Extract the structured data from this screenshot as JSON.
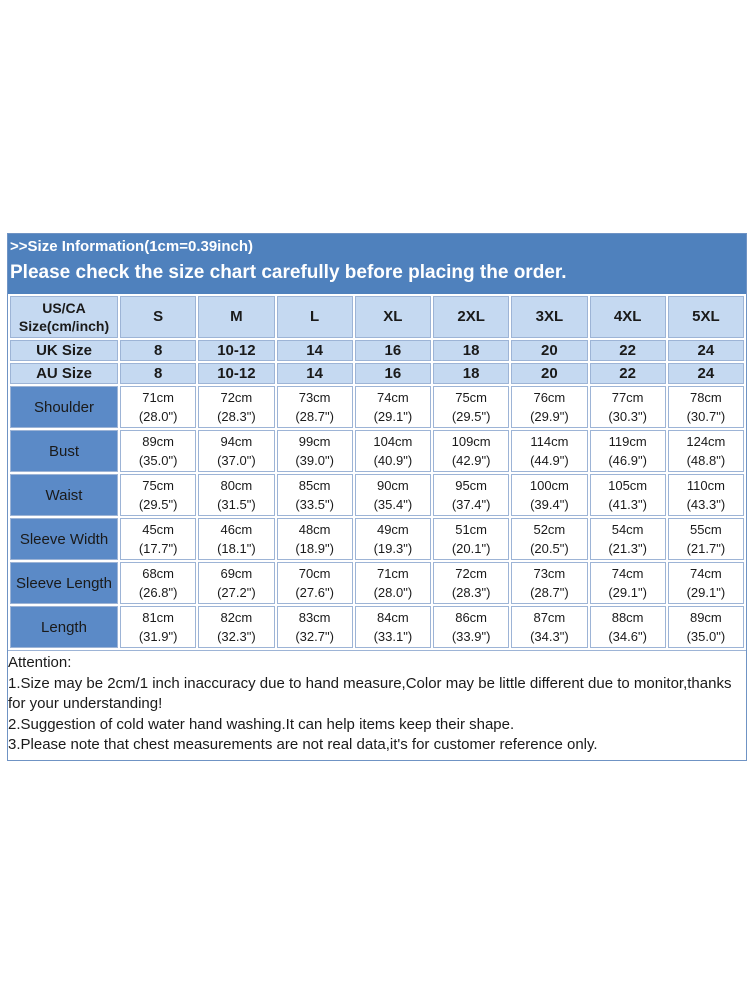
{
  "header": {
    "subtitle": ">>Size Information(1cm=0.39inch)",
    "title": "Please check the size chart carefully before placing the order."
  },
  "table": {
    "corner_label_line1": "US/CA",
    "corner_label_line2": "Size(cm/inch)",
    "sizes": [
      "S",
      "M",
      "L",
      "XL",
      "2XL",
      "3XL",
      "4XL",
      "5XL"
    ],
    "uk": {
      "label": "UK Size",
      "values": [
        "8",
        "10-12",
        "14",
        "16",
        "18",
        "20",
        "22",
        "24"
      ]
    },
    "au": {
      "label": "AU Size",
      "values": [
        "8",
        "10-12",
        "14",
        "16",
        "18",
        "20",
        "22",
        "24"
      ]
    },
    "measurements": [
      {
        "label": "Shoulder",
        "cm": [
          "71cm",
          "72cm",
          "73cm",
          "74cm",
          "75cm",
          "76cm",
          "77cm",
          "78cm"
        ],
        "inch": [
          "(28.0\")",
          "(28.3\")",
          "(28.7\")",
          "(29.1\")",
          "(29.5\")",
          "(29.9\")",
          "(30.3\")",
          "(30.7\")"
        ]
      },
      {
        "label": "Bust",
        "cm": [
          "89cm",
          "94cm",
          "99cm",
          "104cm",
          "109cm",
          "114cm",
          "119cm",
          "124cm"
        ],
        "inch": [
          "(35.0\")",
          "(37.0\")",
          "(39.0\")",
          "(40.9\")",
          "(42.9\")",
          "(44.9\")",
          "(46.9\")",
          "(48.8\")"
        ]
      },
      {
        "label": "Waist",
        "cm": [
          "75cm",
          "80cm",
          "85cm",
          "90cm",
          "95cm",
          "100cm",
          "105cm",
          "110cm"
        ],
        "inch": [
          "(29.5\")",
          "(31.5\")",
          "(33.5\")",
          "(35.4\")",
          "(37.4\")",
          "(39.4\")",
          "(41.3\")",
          "(43.3\")"
        ]
      },
      {
        "label": "Sleeve Width",
        "cm": [
          "45cm",
          "46cm",
          "48cm",
          "49cm",
          "51cm",
          "52cm",
          "54cm",
          "55cm"
        ],
        "inch": [
          "(17.7\")",
          "(18.1\")",
          "(18.9\")",
          "(19.3\")",
          "(20.1\")",
          "(20.5\")",
          "(21.3\")",
          "(21.7\")"
        ]
      },
      {
        "label": "Sleeve Length",
        "cm": [
          "68cm",
          "69cm",
          "70cm",
          "71cm",
          "72cm",
          "73cm",
          "74cm",
          "74cm"
        ],
        "inch": [
          "(26.8\")",
          "(27.2\")",
          "(27.6\")",
          "(28.0\")",
          "(28.3\")",
          "(28.7\")",
          "(29.1\")",
          "(29.1\")"
        ]
      },
      {
        "label": "Length",
        "cm": [
          "81cm",
          "82cm",
          "83cm",
          "84cm",
          "86cm",
          "87cm",
          "88cm",
          "89cm"
        ],
        "inch": [
          "(31.9\")",
          "(32.3\")",
          "(32.7\")",
          "(33.1\")",
          "(33.9\")",
          "(34.3\")",
          "(34.6\")",
          "(35.0\")"
        ]
      }
    ]
  },
  "notes": {
    "heading": "Attention:",
    "items": [
      "1.Size may be 2cm/1 inch inaccuracy due to hand measure,Color may be little different due to monitor,thanks for your understanding!",
      "2.Suggestion of cold water hand washing.It can help items keep their shape.",
      "3.Please note that chest measurements are not real data,it's for customer reference only."
    ]
  },
  "colors": {
    "header_band": "#4f81bd",
    "light_cell": "#c5d9f1",
    "label_cell": "#5b8ac7"
  }
}
